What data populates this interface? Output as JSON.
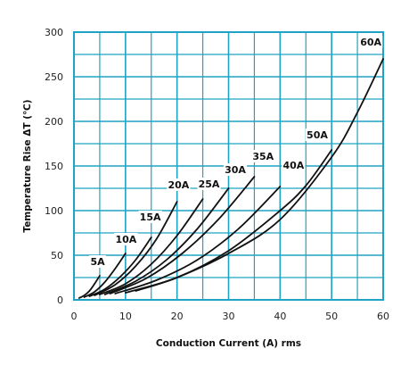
{
  "chart_data": {
    "type": "line",
    "title": "",
    "xlabel": "Conduction Current (A) rms",
    "ylabel": "Temperature Rise ΔT (℃)",
    "xlim": [
      0,
      60
    ],
    "ylim": [
      0,
      300
    ],
    "xticks": [
      0,
      10,
      20,
      30,
      40,
      50,
      60
    ],
    "yticks": [
      0,
      50,
      100,
      150,
      200,
      250,
      300
    ],
    "grid": true,
    "colors": {
      "grid": "#1fa3c4",
      "line": "#111111",
      "background": "#ffffff"
    },
    "series": [
      {
        "name": "5A",
        "x": [
          1,
          2,
          3,
          4,
          5
        ],
        "y": [
          2,
          5,
          10,
          18,
          27
        ]
      },
      {
        "name": "10A",
        "x": [
          2,
          4,
          6,
          8,
          10
        ],
        "y": [
          3,
          9,
          20,
          35,
          52
        ]
      },
      {
        "name": "15A",
        "x": [
          3,
          6,
          9,
          12,
          15
        ],
        "y": [
          4,
          12,
          26,
          45,
          70
        ]
      },
      {
        "name": "20A",
        "x": [
          4,
          8,
          12,
          16,
          20
        ],
        "y": [
          5,
          17,
          38,
          68,
          110
        ]
      },
      {
        "name": "25A",
        "x": [
          5,
          10,
          15,
          20,
          25
        ],
        "y": [
          6,
          18,
          40,
          72,
          113
        ]
      },
      {
        "name": "30A",
        "x": [
          6,
          12,
          18,
          24,
          30
        ],
        "y": [
          6,
          21,
          45,
          80,
          125
        ]
      },
      {
        "name": "35A",
        "x": [
          7,
          14,
          21,
          28,
          35
        ],
        "y": [
          7,
          24,
          52,
          90,
          138
        ]
      },
      {
        "name": "40A",
        "x": [
          8,
          16,
          24,
          32,
          40
        ],
        "y": [
          7,
          22,
          45,
          80,
          127
        ]
      },
      {
        "name": "50A",
        "x": [
          10,
          20,
          30,
          40,
          45,
          50
        ],
        "y": [
          8,
          25,
          55,
          100,
          128,
          168
        ]
      },
      {
        "name": "60A",
        "x": [
          12,
          20,
          30,
          40,
          50,
          55,
          60
        ],
        "y": [
          10,
          25,
          52,
          90,
          160,
          210,
          270
        ]
      }
    ],
    "labels": [
      {
        "text": "5A",
        "x": 4.6,
        "y": 40
      },
      {
        "text": "10A",
        "x": 10.1,
        "y": 65
      },
      {
        "text": "15A",
        "x": 14.8,
        "y": 90
      },
      {
        "text": "20A",
        "x": 20.3,
        "y": 126
      },
      {
        "text": "25A",
        "x": 26.2,
        "y": 127
      },
      {
        "text": "30A",
        "x": 31.3,
        "y": 143
      },
      {
        "text": "35A",
        "x": 36.7,
        "y": 158
      },
      {
        "text": "40A",
        "x": 42.6,
        "y": 148
      },
      {
        "text": "50A",
        "x": 47.2,
        "y": 182
      },
      {
        "text": "60A",
        "x": 57.6,
        "y": 286
      }
    ]
  }
}
